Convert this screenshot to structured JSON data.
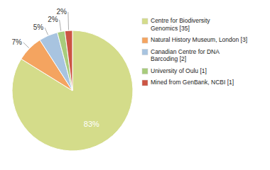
{
  "chart_data": {
    "type": "pie",
    "labels": [
      "Centre for Biodiversity\nGenomics [35]",
      "Natural History Museum, London [3]",
      "Canadian Centre for DNA\nBarcoding [2]",
      "University of Oulu [1]",
      "Mined from GenBank, NCBI [1]"
    ],
    "values": [
      83,
      7,
      5,
      2,
      2
    ],
    "value_labels": [
      "83%",
      "7%",
      "5%",
      "2%",
      "2%"
    ],
    "colors": [
      "#d4dc8a",
      "#f4a460",
      "#a8c4e0",
      "#a8cc7c",
      "#cc5544"
    ],
    "data_labels": true,
    "legend": "right"
  }
}
